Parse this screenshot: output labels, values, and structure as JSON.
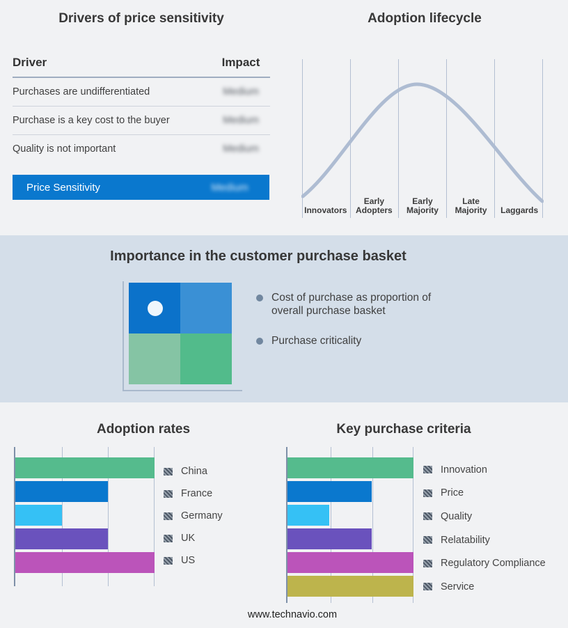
{
  "footer": {
    "website": "www.technavio.com"
  },
  "colors": {
    "accent_blue": "#0a78ce",
    "page_bg": "#f1f2f4",
    "band_bg": "#d4dee9",
    "curve": "#aebcd2",
    "gridline": "#b3bfd2",
    "axis": "#7e90a8",
    "hatch_swatch": "#4d5866"
  },
  "drivers_panel": {
    "title": "Drivers of price sensitivity",
    "columns": {
      "driver": "Driver",
      "impact": "Impact"
    },
    "rows": [
      {
        "driver": "Purchases are undifferentiated",
        "impact": "Medium",
        "impact_blurred": true
      },
      {
        "driver": "Purchase is a key cost to the buyer",
        "impact": "Medium",
        "impact_blurred": true
      },
      {
        "driver": "Quality is not important",
        "impact": "Medium",
        "impact_blurred": true
      }
    ],
    "summary": {
      "label": "Price Sensitivity",
      "impact": "Medium",
      "impact_blurred": true
    }
  },
  "basket_panel": {
    "title": "Importance in the customer purchase basket",
    "bullets": [
      "Cost of purchase as proportion of overall purchase basket",
      "Purchase criticality"
    ],
    "quadrant_colors": [
      "#0b72ca",
      "#3a90d5",
      "#85c4a4",
      "#52bb8b"
    ],
    "highlight_dot_quadrant": "top-left"
  },
  "chart_data": [
    {
      "type": "line",
      "title": "Adoption lifecycle",
      "x": [
        "Innovators",
        "Early Adopters",
        "Early Majority",
        "Late Majority",
        "Laggards"
      ],
      "y_relative": [
        0.05,
        0.5,
        1.0,
        0.5,
        0.07
      ],
      "description": "Bell-shaped adoption curve peaking around Early Majority",
      "grid": "vertical-gridlines-6",
      "legend_position": "none",
      "line_color": "#aebcd2"
    },
    {
      "type": "bar",
      "title": "Adoption rates",
      "orientation": "horizontal",
      "categories": [
        "China",
        "France",
        "Germany",
        "UK",
        "US"
      ],
      "values": [
        3,
        2,
        1,
        2,
        3
      ],
      "xlim": [
        0,
        3
      ],
      "value_labels": "blurred in source (hatched swatches)",
      "colors": [
        "#55bb8d",
        "#0a78ce",
        "#35c1f5",
        "#6a52bd",
        "#bb54ba"
      ],
      "legend_position": "right",
      "grid": "vertical-gridlines-4"
    },
    {
      "type": "bar",
      "title": "Key purchase criteria",
      "orientation": "horizontal",
      "categories": [
        "Innovation",
        "Price",
        "Quality",
        "Relatability",
        "Regulatory Compliance",
        "Service"
      ],
      "values": [
        3,
        2,
        1,
        2,
        3,
        3
      ],
      "xlim": [
        0,
        3
      ],
      "value_labels": "blurred in source (hatched swatches)",
      "colors": [
        "#55bb8d",
        "#0a78ce",
        "#35c1f5",
        "#6a52bd",
        "#bb54ba",
        "#bdb44c"
      ],
      "legend_position": "right",
      "grid": "vertical-gridlines-4"
    }
  ]
}
